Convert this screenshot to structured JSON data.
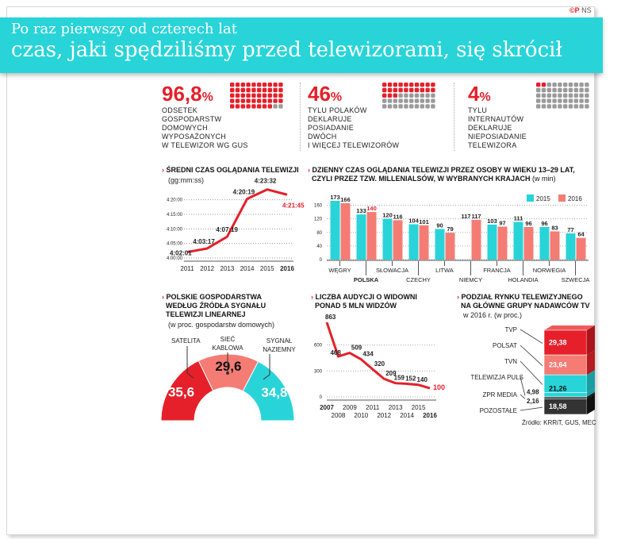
{
  "logo": {
    "brand": "©P",
    "suffix": "NS"
  },
  "header": {
    "line1": "Po raz pierwszy od czterech lat",
    "line2": "czas, jaki spędziliśmy przed telewizorami, się skrócił"
  },
  "stats": [
    {
      "value": "96,8",
      "unit": "%",
      "fraction": 0.968,
      "lines": [
        "ODSETEK",
        "GOSPODARSTW",
        "DOMOWYCH",
        "WYPOSAŻONYCH",
        "W TELEWIZOR WG GUS"
      ]
    },
    {
      "value": "46",
      "unit": "%",
      "fraction": 0.46,
      "lines": [
        "TYLU POLAKÓW",
        "DEKLARUJE",
        "POSIADANIE",
        "DWÓCH",
        "I WIĘCEJ TELEWIZORÓW"
      ]
    },
    {
      "value": "4",
      "unit": "%",
      "fraction": 0.04,
      "lines": [
        "TYLU",
        "INTERNAUTÓW",
        "DEKLARUJE",
        "NIEPOSIADANIE",
        "TELEWIZORA"
      ]
    }
  ],
  "colors": {
    "red": "#e5202a",
    "salmon": "#f47c74",
    "cyan": "#28d4d8",
    "grey": "#9a9a9a",
    "dark": "#333333"
  },
  "chart_data": [
    {
      "type": "line",
      "title": "ŚREDNI CZAS OGLĄDANIA TELEWIZJI",
      "subtitle": "(gg:mm:ss)",
      "x": [
        "2011",
        "2012",
        "2013",
        "2014",
        "2015",
        "2016"
      ],
      "values": [
        "4:02:01",
        "4:03:17",
        "4:07:19",
        "4:20:19",
        "4:23:32",
        "4:21:45"
      ],
      "y_minutes": [
        242.02,
        243.28,
        247.32,
        260.32,
        263.53,
        261.75
      ],
      "yticks": [
        "4:20:00",
        "4:15:00",
        "4:10:00",
        "4:05:00",
        "4:00:00"
      ],
      "ytick_minutes": [
        260,
        255,
        250,
        245,
        240
      ],
      "ylim": [
        240,
        267
      ]
    },
    {
      "type": "bar",
      "title": "DZIENNY CZAS OGLĄDANIA TELEWIZJI PRZEZ OSOBY W WIEKU 13–29 LAT,",
      "title2": "CZYLI PRZEZ TZW. MILLENIALSÓW, W WYBRANYCH KRAJACH",
      "title2_note": "(w min)",
      "categories": [
        "WĘGRY",
        "POLSKA",
        "SŁOWACJA",
        "CZECHY",
        "LITWA",
        "NIEMCY",
        "FRANCJA",
        "HOLANDIA",
        "NORWEGIA",
        "SZWECJA"
      ],
      "series": [
        {
          "name": "2015",
          "values": [
            173,
            133,
            120,
            104,
            90,
            null,
            103,
            111,
            96,
            77
          ]
        },
        {
          "name": "2016",
          "values": [
            166,
            140,
            116,
            101,
            79,
            117,
            97,
            96,
            83,
            64
          ]
        }
      ],
      "germany_2015_label": "117",
      "yticks": [
        160,
        120,
        80,
        40,
        0
      ],
      "ylim": [
        0,
        180
      ],
      "legend": "top-right"
    },
    {
      "type": "pie",
      "title": "POLSKIE GOSPODARSTWA",
      "title2": "WEDŁUG ŹRÓDŁA SYGNAŁU",
      "title3": "TELEWIZJI LINEARNEJ",
      "subtitle": "(w proc. gospodarstw domowych)",
      "slices": [
        {
          "label": "SATELITA",
          "value": 35.6,
          "display": "35,6"
        },
        {
          "label1": "SIEĆ",
          "label2": "KABLOWA",
          "value": 29.6,
          "display": "29,6"
        },
        {
          "label1": "SYGNAŁ",
          "label2": "NAZIEMNY",
          "value": 34.8,
          "display": "34,8"
        }
      ]
    },
    {
      "type": "line",
      "title": "LICZBA AUDYCJI O WIDOWNI",
      "title2": "PONAD 5 MLN WIDZÓW",
      "x": [
        "2007",
        "2008",
        "2009",
        "2010",
        "2011",
        "2012",
        "2013",
        "2014",
        "2015",
        "2016"
      ],
      "values": [
        863,
        468,
        509,
        434,
        320,
        209,
        159,
        152,
        140,
        100
      ],
      "yticks": [
        600,
        300,
        0
      ],
      "ylim": [
        0,
        900
      ]
    },
    {
      "type": "bar",
      "stacked": true,
      "title": "PODZIAŁ RYNKU TELEWIZYJNEGO",
      "title2": "NA GŁÓWNE GRUPY NADAWCÓW TV",
      "subtitle": "w 2016 r. (w proc.)",
      "segments": [
        {
          "label": "TVP",
          "value": 29.38,
          "display": "29,38"
        },
        {
          "label": "POLSAT",
          "value": 23.64,
          "display": "23,64"
        },
        {
          "label": "TVN",
          "value": 21.26,
          "display": "21,26"
        },
        {
          "label": "TELEWIZJA PULS",
          "value": 4.98,
          "display": "4,98"
        },
        {
          "label": "ZPR MEDIA",
          "value": 2.16,
          "display": "2,16"
        },
        {
          "label": "POZOSTAŁE",
          "value": 18.58,
          "display": "18,58"
        }
      ],
      "source": "Źródło: KRRiT, GUS, MEC"
    }
  ]
}
